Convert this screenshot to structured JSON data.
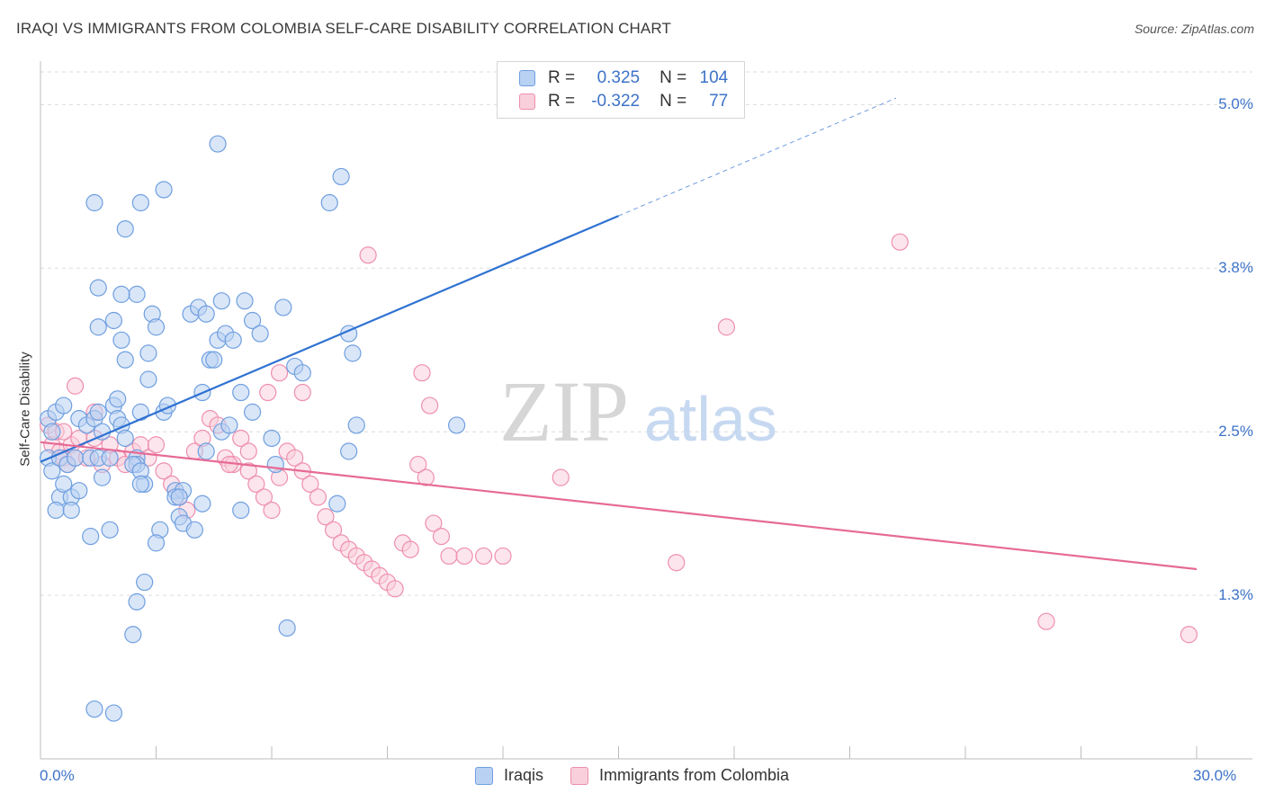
{
  "title": "IRAQI VS IMMIGRANTS FROM COLOMBIA SELF-CARE DISABILITY CORRELATION CHART",
  "source": "Source: ZipAtlas.com",
  "watermark": {
    "zip": "ZIP",
    "atlas": "atlas"
  },
  "colors": {
    "iraqi": "#6f9fe0",
    "iraqi_fill": "#b9d1f3",
    "iraqi_line": "#2f72d2",
    "colombia": "#ee8fae",
    "colombia_fill": "#f9cfdc",
    "colombia_line": "#e66a95",
    "tick_text": "#3d73c8"
  },
  "legend": {
    "rows": [
      {
        "r_label": "R =",
        "r_value": "0.325",
        "n_label": "N =",
        "n_value": "104"
      },
      {
        "r_label": "R =",
        "r_value": "-0.322",
        "n_label": "N =",
        "n_value": "77"
      }
    ]
  },
  "bottom_legend": [
    "Iraqis",
    "Immigrants from Colombia"
  ],
  "chart_data": {
    "type": "scatter",
    "title": "IRAQI VS IMMIGRANTS FROM COLOMBIA SELF-CARE DISABILITY CORRELATION CHART",
    "xlabel": "",
    "ylabel": "Self-Care Disability",
    "xlim": [
      0,
      30
    ],
    "ylim": [
      0,
      5.25
    ],
    "x_tick_labels": [
      "0.0%",
      "30.0%"
    ],
    "y_ticks": [
      {
        "value": 1.25,
        "label": "1.3%"
      },
      {
        "value": 2.5,
        "label": "2.5%"
      },
      {
        "value": 3.75,
        "label": "3.8%"
      },
      {
        "value": 5.0,
        "label": "5.0%"
      }
    ],
    "grid": "horizontal dashed",
    "legend_position": "top-center",
    "series": [
      {
        "name": "Iraqis",
        "r": 0.325,
        "n": 104,
        "trend": {
          "x0": 0.0,
          "y0": 2.27,
          "x1": 15.0,
          "y1": 4.15,
          "dashed_to_x": 22.2,
          "dashed_to_y": 5.05
        },
        "points": [
          [
            0.2,
            2.6
          ],
          [
            0.3,
            2.5
          ],
          [
            0.2,
            2.3
          ],
          [
            0.3,
            2.2
          ],
          [
            0.4,
            2.65
          ],
          [
            0.5,
            2.0
          ],
          [
            0.6,
            2.1
          ],
          [
            0.4,
            1.9
          ],
          [
            0.5,
            2.3
          ],
          [
            0.6,
            2.7
          ],
          [
            0.7,
            2.25
          ],
          [
            0.8,
            2.0
          ],
          [
            0.9,
            2.3
          ],
          [
            1.0,
            2.6
          ],
          [
            1.0,
            2.05
          ],
          [
            0.8,
            1.9
          ],
          [
            1.2,
            2.55
          ],
          [
            1.3,
            2.3
          ],
          [
            1.5,
            2.3
          ],
          [
            1.4,
            2.6
          ],
          [
            1.6,
            2.15
          ],
          [
            1.5,
            2.65
          ],
          [
            1.6,
            2.5
          ],
          [
            1.8,
            2.3
          ],
          [
            1.9,
            2.7
          ],
          [
            2.0,
            2.6
          ],
          [
            2.0,
            2.75
          ],
          [
            2.1,
            2.55
          ],
          [
            2.2,
            2.45
          ],
          [
            1.8,
            1.75
          ],
          [
            1.3,
            1.7
          ],
          [
            1.9,
            3.35
          ],
          [
            2.1,
            3.2
          ],
          [
            2.2,
            3.05
          ],
          [
            2.5,
            2.3
          ],
          [
            2.5,
            2.25
          ],
          [
            2.6,
            2.65
          ],
          [
            2.7,
            2.1
          ],
          [
            2.8,
            2.9
          ],
          [
            2.8,
            3.1
          ],
          [
            2.9,
            3.4
          ],
          [
            3.0,
            3.3
          ],
          [
            3.1,
            1.75
          ],
          [
            3.0,
            1.65
          ],
          [
            3.2,
            2.65
          ],
          [
            3.3,
            2.7
          ],
          [
            3.5,
            2.05
          ],
          [
            3.6,
            1.85
          ],
          [
            3.7,
            1.8
          ],
          [
            3.7,
            2.05
          ],
          [
            3.9,
            3.4
          ],
          [
            4.1,
            3.45
          ],
          [
            4.2,
            2.8
          ],
          [
            4.3,
            2.35
          ],
          [
            4.2,
            1.95
          ],
          [
            4.0,
            1.75
          ],
          [
            4.4,
            3.05
          ],
          [
            4.5,
            3.05
          ],
          [
            4.7,
            3.5
          ],
          [
            4.3,
            3.4
          ],
          [
            4.6,
            3.2
          ],
          [
            4.8,
            3.25
          ],
          [
            5.0,
            3.2
          ],
          [
            4.7,
            2.5
          ],
          [
            4.9,
            2.55
          ],
          [
            5.2,
            2.8
          ],
          [
            5.3,
            3.5
          ],
          [
            5.2,
            1.9
          ],
          [
            5.5,
            3.35
          ],
          [
            5.5,
            2.65
          ],
          [
            5.7,
            3.25
          ],
          [
            6.1,
            2.25
          ],
          [
            6.3,
            3.45
          ],
          [
            6.6,
            3.0
          ],
          [
            6.8,
            2.95
          ],
          [
            7.5,
            4.25
          ],
          [
            7.8,
            4.45
          ],
          [
            8.1,
            3.1
          ],
          [
            8.2,
            2.55
          ],
          [
            8.0,
            3.25
          ],
          [
            4.6,
            4.7
          ],
          [
            3.2,
            4.35
          ],
          [
            2.6,
            4.25
          ],
          [
            2.2,
            4.05
          ],
          [
            1.4,
            4.25
          ],
          [
            1.5,
            3.6
          ],
          [
            2.5,
            3.55
          ],
          [
            2.1,
            3.55
          ],
          [
            1.5,
            3.3
          ],
          [
            2.4,
            2.25
          ],
          [
            2.6,
            2.2
          ],
          [
            2.6,
            2.1
          ],
          [
            3.5,
            2.0
          ],
          [
            3.6,
            2.0
          ],
          [
            2.5,
            1.2
          ],
          [
            2.7,
            1.35
          ],
          [
            2.4,
            0.95
          ],
          [
            1.4,
            0.38
          ],
          [
            1.9,
            0.35
          ],
          [
            6.4,
            1.0
          ],
          [
            7.7,
            1.95
          ],
          [
            8.0,
            2.35
          ],
          [
            10.8,
            2.55
          ],
          [
            6.0,
            2.45
          ]
        ]
      },
      {
        "name": "Immigrants from Colombia",
        "r": -0.322,
        "n": 77,
        "trend": {
          "x0": 0.0,
          "y0": 2.42,
          "x1": 30.0,
          "y1": 1.45
        },
        "points": [
          [
            0.2,
            2.55
          ],
          [
            0.3,
            2.4
          ],
          [
            0.4,
            2.5
          ],
          [
            0.5,
            2.35
          ],
          [
            0.6,
            2.3
          ],
          [
            0.7,
            2.25
          ],
          [
            0.8,
            2.4
          ],
          [
            0.9,
            2.3
          ],
          [
            1.0,
            2.45
          ],
          [
            1.2,
            2.3
          ],
          [
            1.4,
            2.45
          ],
          [
            1.6,
            2.25
          ],
          [
            1.8,
            2.4
          ],
          [
            2.0,
            2.3
          ],
          [
            2.2,
            2.25
          ],
          [
            2.4,
            2.35
          ],
          [
            2.6,
            2.4
          ],
          [
            2.8,
            2.3
          ],
          [
            3.0,
            2.4
          ],
          [
            3.2,
            2.2
          ],
          [
            3.4,
            2.1
          ],
          [
            3.6,
            2.0
          ],
          [
            3.8,
            1.9
          ],
          [
            4.0,
            2.35
          ],
          [
            4.2,
            2.45
          ],
          [
            4.4,
            2.6
          ],
          [
            4.6,
            2.55
          ],
          [
            4.8,
            2.3
          ],
          [
            5.0,
            2.25
          ],
          [
            5.2,
            2.45
          ],
          [
            5.4,
            2.2
          ],
          [
            5.6,
            2.1
          ],
          [
            5.8,
            2.0
          ],
          [
            6.0,
            1.9
          ],
          [
            6.2,
            2.15
          ],
          [
            6.4,
            2.35
          ],
          [
            6.6,
            2.3
          ],
          [
            6.8,
            2.2
          ],
          [
            7.0,
            2.1
          ],
          [
            7.2,
            2.0
          ],
          [
            7.4,
            1.85
          ],
          [
            7.6,
            1.75
          ],
          [
            7.8,
            1.65
          ],
          [
            8.0,
            1.6
          ],
          [
            8.2,
            1.55
          ],
          [
            8.4,
            1.5
          ],
          [
            8.6,
            1.45
          ],
          [
            8.8,
            1.4
          ],
          [
            9.0,
            1.35
          ],
          [
            9.2,
            1.3
          ],
          [
            9.4,
            1.65
          ],
          [
            9.6,
            1.6
          ],
          [
            9.8,
            2.25
          ],
          [
            10.0,
            2.15
          ],
          [
            10.2,
            1.8
          ],
          [
            10.4,
            1.7
          ],
          [
            10.6,
            1.55
          ],
          [
            11.0,
            1.55
          ],
          [
            11.5,
            1.55
          ],
          [
            12.0,
            1.55
          ],
          [
            13.5,
            2.15
          ],
          [
            16.5,
            1.5
          ],
          [
            17.8,
            3.3
          ],
          [
            22.3,
            3.95
          ],
          [
            26.1,
            1.05
          ],
          [
            29.8,
            0.95
          ],
          [
            8.5,
            3.85
          ],
          [
            5.9,
            2.8
          ],
          [
            6.2,
            2.95
          ],
          [
            6.8,
            2.8
          ],
          [
            0.9,
            2.85
          ],
          [
            1.4,
            2.65
          ],
          [
            0.6,
            2.5
          ],
          [
            9.9,
            2.95
          ],
          [
            10.1,
            2.7
          ],
          [
            5.4,
            2.35
          ],
          [
            4.9,
            2.25
          ]
        ]
      }
    ]
  }
}
